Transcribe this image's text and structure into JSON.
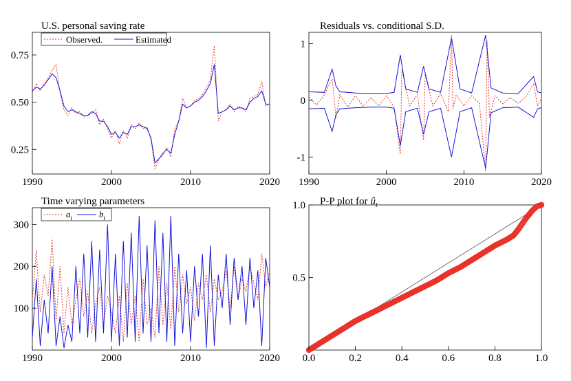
{
  "colors": {
    "observed": "#e8332a",
    "estimated": "#1515d8",
    "reference": "#555555",
    "axis": "#000000"
  },
  "chart_data": [
    {
      "id": "saving",
      "type": "line",
      "title": "U.S. personal saving rate",
      "xlim": [
        1990,
        2020
      ],
      "ylim": [
        0.12,
        0.87
      ],
      "xticks": [
        1990,
        2000,
        2010,
        2020
      ],
      "yticks": [
        0.25,
        0.5,
        0.75
      ],
      "ytick_labels": [
        "0.25",
        "0.50",
        "0.75"
      ],
      "legend": "top-left",
      "series": [
        {
          "name": "Observed.",
          "style": "dotted",
          "x": [
            1990,
            1990.5,
            1991,
            1991.5,
            1992,
            1992.5,
            1993,
            1993.5,
            1994,
            1994.5,
            1995,
            1995.5,
            1996,
            1996.5,
            1997,
            1997.5,
            1998,
            1998.5,
            1999,
            1999.5,
            2000,
            2000.5,
            2001,
            2001.5,
            2002,
            2002.5,
            2003,
            2003.5,
            2004,
            2004.5,
            2005,
            2005.5,
            2006,
            2006.5,
            2007,
            2007.5,
            2008,
            2008.5,
            2009,
            2009.5,
            2010,
            2010.5,
            2011,
            2011.5,
            2012,
            2012.5,
            2013,
            2013.5,
            2014,
            2014.5,
            2015,
            2015.5,
            2016,
            2016.5,
            2017,
            2017.5,
            2018,
            2018.5,
            2019,
            2019.5,
            2020
          ],
          "y": [
            0.55,
            0.6,
            0.56,
            0.6,
            0.63,
            0.67,
            0.7,
            0.55,
            0.46,
            0.43,
            0.47,
            0.44,
            0.45,
            0.42,
            0.43,
            0.44,
            0.46,
            0.38,
            0.41,
            0.36,
            0.31,
            0.35,
            0.28,
            0.35,
            0.31,
            0.38,
            0.36,
            0.39,
            0.36,
            0.37,
            0.3,
            0.15,
            0.2,
            0.22,
            0.26,
            0.21,
            0.36,
            0.4,
            0.52,
            0.47,
            0.48,
            0.51,
            0.52,
            0.54,
            0.58,
            0.62,
            0.8,
            0.4,
            0.45,
            0.46,
            0.49,
            0.45,
            0.48,
            0.47,
            0.45,
            0.52,
            0.53,
            0.54,
            0.61,
            0.48,
            0.49
          ]
        },
        {
          "name": "Estimated",
          "style": "solid",
          "x": [
            1990,
            1990.5,
            1991,
            1991.5,
            1992,
            1992.5,
            1993,
            1993.5,
            1994,
            1994.5,
            1995,
            1995.5,
            1996,
            1996.5,
            1997,
            1997.5,
            1998,
            1998.5,
            1999,
            1999.5,
            2000,
            2000.5,
            2001,
            2001.5,
            2002,
            2002.5,
            2003,
            2003.5,
            2004,
            2004.5,
            2005,
            2005.5,
            2006,
            2006.5,
            2007,
            2007.5,
            2008,
            2008.5,
            2009,
            2009.5,
            2010,
            2010.5,
            2011,
            2011.5,
            2012,
            2012.5,
            2013,
            2013.5,
            2014,
            2014.5,
            2015,
            2015.5,
            2016,
            2016.5,
            2017,
            2017.5,
            2018,
            2018.5,
            2019,
            2019.5,
            2020
          ],
          "y": [
            0.56,
            0.58,
            0.57,
            0.59,
            0.62,
            0.65,
            0.63,
            0.56,
            0.48,
            0.45,
            0.46,
            0.45,
            0.44,
            0.43,
            0.43,
            0.45,
            0.44,
            0.4,
            0.4,
            0.37,
            0.33,
            0.34,
            0.31,
            0.34,
            0.33,
            0.37,
            0.37,
            0.38,
            0.37,
            0.36,
            0.31,
            0.18,
            0.2,
            0.23,
            0.25,
            0.23,
            0.33,
            0.4,
            0.49,
            0.47,
            0.48,
            0.5,
            0.51,
            0.53,
            0.56,
            0.6,
            0.7,
            0.44,
            0.45,
            0.46,
            0.48,
            0.46,
            0.47,
            0.47,
            0.46,
            0.5,
            0.52,
            0.53,
            0.56,
            0.49,
            0.49
          ]
        }
      ]
    },
    {
      "id": "residuals",
      "type": "line",
      "title": "Residuals vs. conditional S.D.",
      "xlim": [
        1990,
        2020
      ],
      "ylim": [
        -1.3,
        1.2
      ],
      "xticks": [
        1990,
        2000,
        2010,
        2020
      ],
      "yticks": [
        -1,
        0,
        1
      ],
      "ytick_labels": [
        "-1",
        "0",
        "1"
      ],
      "series": [
        {
          "name": "",
          "style": "dotted",
          "x": [
            1990,
            1991,
            1992,
            1993,
            1993.5,
            1994,
            1995,
            1996,
            1997,
            1998,
            1999,
            2000,
            2001,
            2001.8,
            2002,
            2003,
            2004,
            2004.8,
            2005,
            2006,
            2007,
            2008,
            2008.4,
            2008.6,
            2009,
            2010,
            2011,
            2012,
            2012.8,
            2013,
            2013.3,
            2014,
            2015,
            2016,
            2017,
            2018,
            2019,
            2019.5,
            2020
          ],
          "y": [
            0.05,
            -0.08,
            0.1,
            0.38,
            -0.3,
            0.1,
            -0.12,
            0.08,
            -0.1,
            0.05,
            -0.1,
            0.08,
            -0.12,
            -0.95,
            0.55,
            -0.1,
            0.1,
            -0.7,
            0.45,
            -0.1,
            0.12,
            -0.2,
            1.15,
            -0.15,
            0.1,
            -0.1,
            0.08,
            -0.05,
            -1.25,
            1.05,
            -0.3,
            0.08,
            -0.06,
            0.05,
            -0.05,
            0.06,
            0.3,
            -0.1,
            0.02
          ]
        },
        {
          "name": "",
          "style": "solid",
          "x": [
            1990,
            1992,
            1993,
            1993.5,
            1994,
            1996,
            1998,
            2000,
            2001,
            2001.8,
            2002.5,
            2004,
            2004.8,
            2005.5,
            2007,
            2008.4,
            2009.5,
            2011,
            2012.8,
            2013.5,
            2015,
            2017,
            2019,
            2019.5,
            2020
          ],
          "y": [
            0.15,
            0.14,
            0.55,
            0.25,
            0.15,
            0.13,
            0.12,
            0.12,
            0.14,
            0.8,
            0.2,
            0.14,
            0.6,
            0.2,
            0.14,
            1.1,
            0.2,
            0.13,
            1.15,
            0.22,
            0.13,
            0.12,
            0.42,
            0.15,
            0.13
          ]
        },
        {
          "name": "",
          "style": "solid",
          "x": [
            1990,
            1992,
            1993,
            1993.5,
            1994,
            1996,
            1998,
            2000,
            2001,
            2001.8,
            2002.5,
            2004,
            2004.8,
            2005.5,
            2007,
            2008.4,
            2009.5,
            2011,
            2012.8,
            2013.5,
            2015,
            2017,
            2019,
            2019.5,
            2020
          ],
          "y": [
            -0.15,
            -0.14,
            -0.55,
            -0.25,
            -0.15,
            -0.13,
            -0.12,
            -0.12,
            -0.14,
            -0.8,
            -0.2,
            -0.14,
            -0.6,
            -0.2,
            -0.14,
            -1.0,
            -0.2,
            -0.13,
            -1.2,
            -0.22,
            -0.13,
            -0.12,
            -0.3,
            -0.15,
            -0.13
          ]
        }
      ]
    },
    {
      "id": "params",
      "type": "line",
      "title": "Time varying parameters",
      "xlim": [
        1990,
        2020
      ],
      "ylim": [
        0,
        340
      ],
      "xticks": [
        1990,
        2000,
        2010,
        2020
      ],
      "yticks": [
        100,
        200,
        300
      ],
      "ytick_labels": [
        "100",
        "200",
        "300"
      ],
      "legend": "top-left",
      "series": [
        {
          "name": "a",
          "subscript": "t",
          "style": "dotted",
          "x": [
            1990,
            1990.5,
            1991,
            1991.5,
            1992,
            1992.5,
            1993,
            1993.5,
            1994,
            1994.5,
            1995,
            1995.5,
            1996,
            1996.5,
            1997,
            1997.5,
            1998,
            1998.5,
            1999,
            1999.5,
            2000,
            2000.5,
            2001,
            2001.5,
            2002,
            2002.5,
            2003,
            2003.5,
            2004,
            2004.5,
            2005,
            2005.5,
            2006,
            2006.5,
            2007,
            2007.5,
            2008,
            2008.5,
            2009,
            2009.5,
            2010,
            2010.5,
            2011,
            2011.5,
            2012,
            2012.5,
            2013,
            2013.5,
            2014,
            2014.5,
            2015,
            2015.5,
            2016,
            2016.5,
            2017,
            2017.5,
            2018,
            2018.5,
            2019,
            2019.5,
            2020
          ],
          "y": [
            120,
            238,
            90,
            180,
            130,
            265,
            70,
            200,
            40,
            150,
            60,
            120,
            170,
            80,
            140,
            40,
            110,
            150,
            60,
            130,
            90,
            40,
            130,
            20,
            160,
            60,
            130,
            20,
            170,
            60,
            100,
            30,
            200,
            60,
            160,
            50,
            200,
            90,
            180,
            110,
            150,
            70,
            160,
            120,
            180,
            90,
            170,
            120,
            140,
            190,
            100,
            200,
            120,
            170,
            140,
            200,
            160,
            120,
            230,
            150,
            190
          ]
        },
        {
          "name": "b",
          "subscript": "t",
          "style": "solid",
          "x": [
            1990,
            1990.5,
            1991,
            1991.5,
            1992,
            1992.5,
            1993,
            1993.5,
            1994,
            1994.5,
            1995,
            1995.5,
            1996,
            1996.5,
            1997,
            1997.5,
            1998,
            1998.5,
            1999,
            1999.5,
            2000,
            2000.5,
            2001,
            2001.5,
            2002,
            2002.5,
            2003,
            2003.5,
            2004,
            2004.5,
            2005,
            2005.5,
            2006,
            2006.5,
            2007,
            2007.5,
            2008,
            2008.5,
            2009,
            2009.5,
            2010,
            2010.5,
            2011,
            2011.5,
            2012,
            2012.5,
            2013,
            2013.5,
            2014,
            2014.5,
            2015,
            2015.5,
            2016,
            2016.5,
            2017,
            2017.5,
            2018,
            2018.5,
            2019,
            2019.5,
            2020
          ],
          "y": [
            30,
            170,
            10,
            120,
            40,
            200,
            10,
            80,
            5,
            60,
            20,
            200,
            40,
            230,
            30,
            260,
            20,
            240,
            40,
            300,
            20,
            230,
            10,
            260,
            30,
            280,
            20,
            320,
            40,
            250,
            20,
            310,
            40,
            280,
            20,
            320,
            10,
            230,
            40,
            190,
            20,
            200,
            80,
            230,
            5,
            250,
            10,
            180,
            100,
            230,
            60,
            220,
            120,
            200,
            60,
            220,
            100,
            190,
            10,
            220,
            150
          ]
        }
      ]
    },
    {
      "id": "pp",
      "type": "scatter",
      "title": "P-P plot for",
      "title_symbol": "û",
      "title_subscript": "t",
      "xlim": [
        0,
        1
      ],
      "ylim": [
        0,
        1
      ],
      "xticks": [
        0,
        0.2,
        0.4,
        0.6,
        0.8,
        1
      ],
      "xtick_labels": [
        "0.0",
        "0.2",
        "0.4",
        "0.6",
        "0.8",
        "1.0"
      ],
      "yticks": [
        0.5,
        1
      ],
      "ytick_labels": [
        "0.5",
        "1.0"
      ],
      "reference_line": [
        [
          0,
          0
        ],
        [
          1,
          1
        ]
      ],
      "curve": {
        "x": [
          0,
          0.05,
          0.1,
          0.15,
          0.2,
          0.25,
          0.3,
          0.35,
          0.4,
          0.45,
          0.5,
          0.55,
          0.6,
          0.65,
          0.7,
          0.75,
          0.8,
          0.85,
          0.88,
          0.9,
          0.93,
          0.96,
          0.98,
          1
        ],
        "y": [
          0,
          0.05,
          0.1,
          0.15,
          0.2,
          0.24,
          0.28,
          0.32,
          0.36,
          0.4,
          0.44,
          0.48,
          0.53,
          0.57,
          0.62,
          0.67,
          0.72,
          0.76,
          0.79,
          0.83,
          0.9,
          0.96,
          0.99,
          1
        ]
      },
      "n_points": 360
    }
  ]
}
